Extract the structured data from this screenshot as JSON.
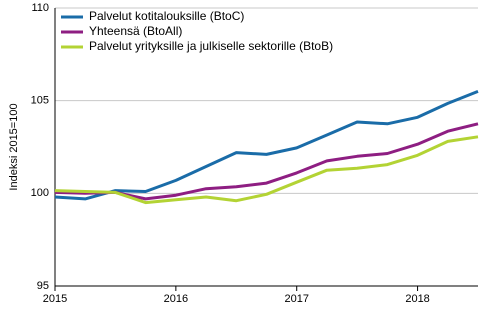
{
  "chart_data": {
    "type": "line",
    "y_label": "Indeksi 2015=100",
    "x": [
      2015,
      2015.25,
      2015.5,
      2015.75,
      2016,
      2016.25,
      2016.5,
      2016.75,
      2017,
      2017.25,
      2017.5,
      2017.75,
      2018,
      2018.25,
      2018.5
    ],
    "series": [
      {
        "name": "Palvelut kotitalouksille (BtoC)",
        "color": "#1a6ca8",
        "values": [
          99.8,
          99.7,
          100.15,
          100.1,
          100.7,
          101.45,
          102.2,
          102.1,
          102.45,
          103.15,
          103.85,
          103.75,
          104.1,
          104.85,
          105.5
        ]
      },
      {
        "name": "Yhteensä (BtoAll)",
        "color": "#8e1e82",
        "values": [
          100.05,
          100.0,
          100.05,
          99.7,
          99.9,
          100.25,
          100.35,
          100.55,
          101.1,
          101.75,
          102.0,
          102.15,
          102.65,
          103.35,
          103.75
        ]
      },
      {
        "name": "Palvelut yrityksille ja julkiselle sektorille (BtoB)",
        "color": "#b3d334",
        "values": [
          100.15,
          100.1,
          100.05,
          99.5,
          99.65,
          99.8,
          99.6,
          99.95,
          100.6,
          101.25,
          101.35,
          101.55,
          102.05,
          102.8,
          103.05
        ]
      }
    ],
    "xlim": [
      2015,
      2018.5
    ],
    "xticks": [
      2015,
      2016,
      2017,
      2018
    ],
    "ylim": [
      95,
      110
    ],
    "yticks": [
      95,
      100,
      105,
      110
    ],
    "grid": true,
    "legend": "top-left"
  }
}
